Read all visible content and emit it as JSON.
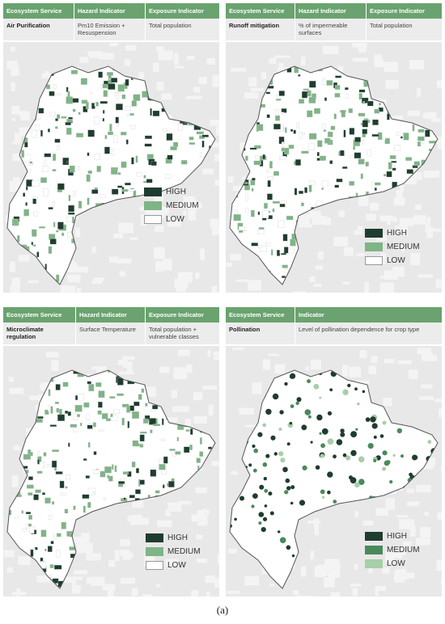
{
  "colors": {
    "header_bg": "#6aa36f",
    "high": "#1f3d2e",
    "medium": "#7fb487",
    "low": "#ffffff",
    "pollination_medium": "#4a8a5a",
    "pollination_low": "#a7cfa9"
  },
  "panels": [
    {
      "headers": [
        "Ecosystem Service",
        "Hazard Indicator",
        "Exposure Indicator"
      ],
      "values": [
        "Air Purification",
        "Pm10 Emission + Resuspension",
        "Total population"
      ],
      "legend": [
        "HIGH",
        "MEDIUM",
        "LOW"
      ]
    },
    {
      "headers": [
        "Ecosystem Service",
        "Hazard Indicator",
        "Exposure Indicator"
      ],
      "values": [
        "Runoff mitigation",
        "% of impermeable surfaces",
        "Total population"
      ],
      "legend": [
        "HIGH",
        "MEDIUM",
        "LOW"
      ]
    },
    {
      "headers": [
        "Ecosystem Service",
        "Hazard Indicator",
        "Exposure Indicator"
      ],
      "values": [
        "Microclimate regulation",
        "Surface Temperature",
        "Total population + vulnerable classes"
      ],
      "legend": [
        "HIGH",
        "MEDIUM",
        "LOW"
      ]
    },
    {
      "headers": [
        "Ecosystem Service",
        "Indicator"
      ],
      "values": [
        "Pollination",
        "Level of pollination dependence for crop type"
      ],
      "legend": [
        "HIGH",
        "MEDIUM",
        "LOW"
      ]
    }
  ],
  "caption": "(a)"
}
